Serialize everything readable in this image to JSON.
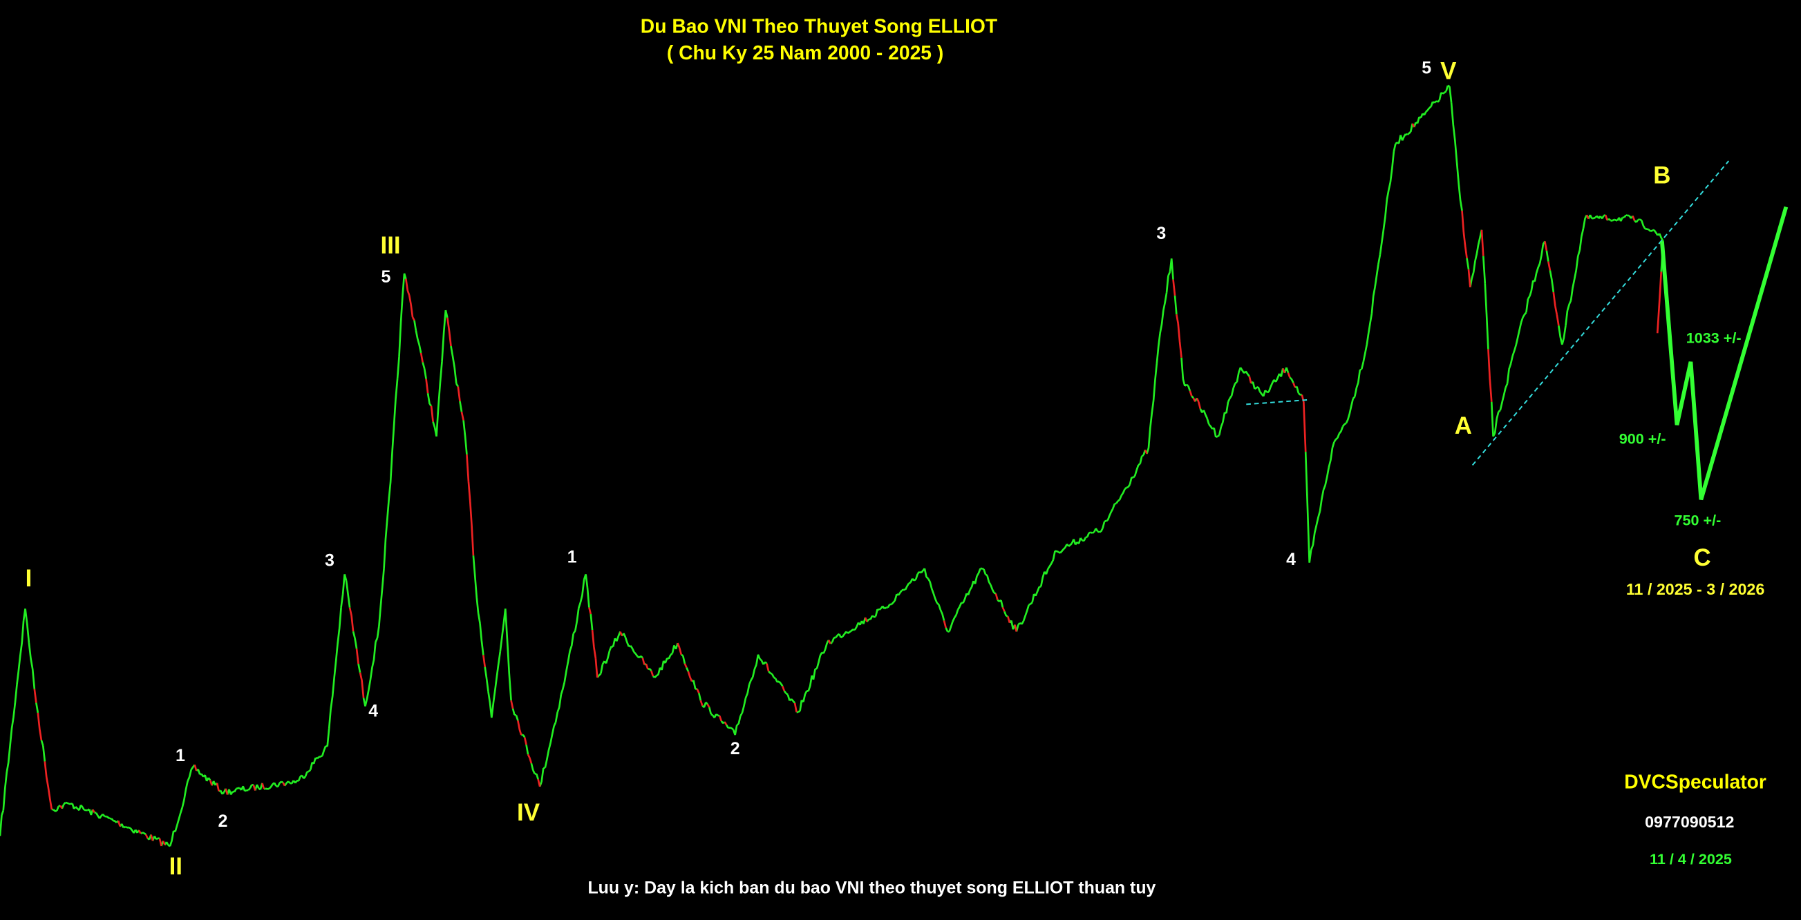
{
  "chart_data": {
    "type": "wave-chart",
    "title": "Du Bao VNI Theo Thuyet Song ELLIOT",
    "subtitle": "( Chu Ky 25 Nam 2000 - 2025 )",
    "major_waves": [
      "I",
      "II",
      "III",
      "IV",
      "V",
      "A",
      "B",
      "C"
    ],
    "minor_waves": [
      "1",
      "2",
      "3",
      "4",
      "5",
      "1",
      "2",
      "3",
      "4",
      "5"
    ],
    "forecast_labels": [
      "1033 +/-",
      "900 +/-",
      "750 +/-"
    ],
    "period": "11 / 2025 - 3 / 2026",
    "author": "DVCSpeculator",
    "phone": "0977090512",
    "date": "11 / 4 / 2025",
    "note": "Luu y: Day la kich ban du bao VNI theo thuyet song ELLIOT thuan tuy"
  }
}
